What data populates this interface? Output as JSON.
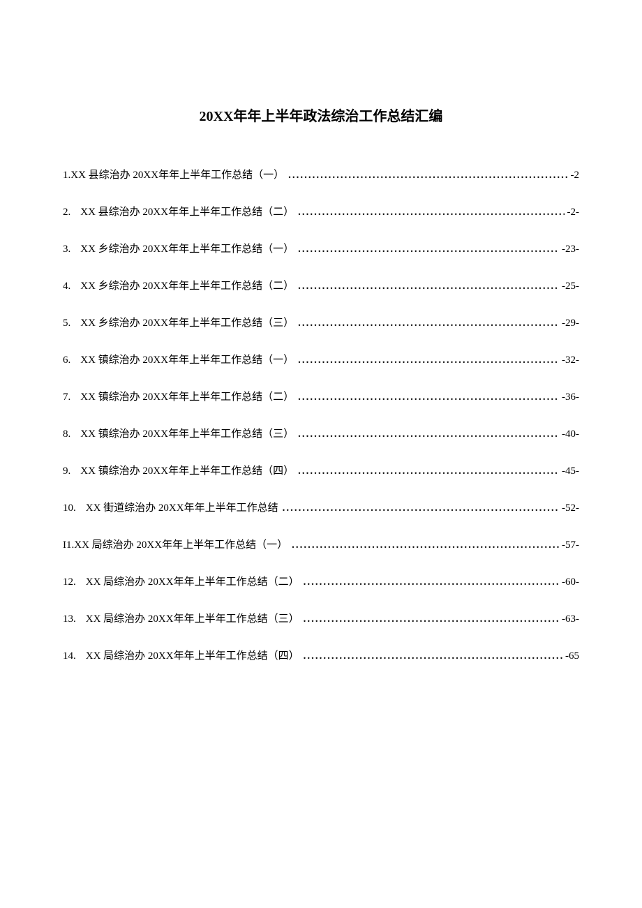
{
  "title": "20XX年年上半年政法综治工作总结汇编",
  "toc": [
    {
      "num": "1.",
      "text": "XX 县综治办 20XX年年上半年工作总结（一）",
      "page": "-2"
    },
    {
      "num": "2.",
      "text": "XX 县综治办 20XX年年上半年工作总结（二）",
      "page": "-2-"
    },
    {
      "num": "3.",
      "text": "XX 乡综治办 20XX年年上半年工作总结（一）",
      "page": "-23-"
    },
    {
      "num": "4.",
      "text": "XX 乡综治办 20XX年年上半年工作总结（二）",
      "page": "-25-"
    },
    {
      "num": "5.",
      "text": "XX 乡综治办 20XX年年上半年工作总结（三）",
      "page": "-29-"
    },
    {
      "num": "6.",
      "text": "XX 镇综治办 20XX年年上半年工作总结（一）",
      "page": "-32-"
    },
    {
      "num": "7.",
      "text": "XX 镇综治办 20XX年年上半年工作总结（二）",
      "page": "-36-"
    },
    {
      "num": "8.",
      "text": "XX 镇综治办 20XX年年上半年工作总结（三）",
      "page": "-40-"
    },
    {
      "num": "9.",
      "text": "XX 镇综治办 20XX年年上半年工作总结（四）",
      "page": "-45-"
    },
    {
      "num": "10.",
      "text": "XX 街道综治办 20XX年年上半年工作总结",
      "page": "-52-"
    },
    {
      "num": "I1.",
      "text": "XX 局综治办 20XX年年上半年工作总结（一）",
      "page": "-57-"
    },
    {
      "num": "12.",
      "text": "XX 局综治办 20XX年年上半年工作总结（二）",
      "page": "-60-"
    },
    {
      "num": "13.",
      "text": "XX 局综治办 20XX年年上半年工作总结（三）",
      "page": "-63-"
    },
    {
      "num": "14.",
      "text": "XX 局综治办 20XX年年上半年工作总结（四）",
      "page": "-65"
    }
  ],
  "layout": {
    "numPad": [
      false,
      true,
      true,
      true,
      true,
      true,
      true,
      true,
      true,
      true,
      false,
      true,
      true,
      true
    ]
  },
  "style": {
    "background_color": "#ffffff",
    "text_color": "#000000",
    "title_fontsize": 20,
    "body_fontsize": 15,
    "line_spacing": 32,
    "dot_char": "."
  }
}
